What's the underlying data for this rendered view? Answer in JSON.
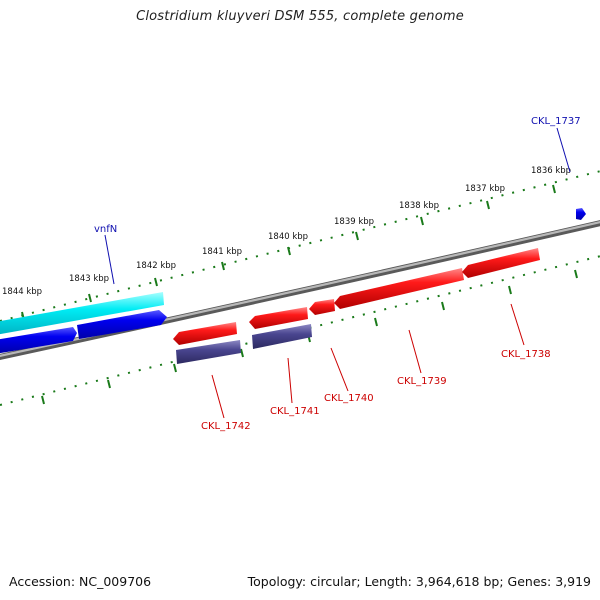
{
  "title": "Clostridium kluyveri DSM 555, complete genome",
  "footer": {
    "accession": "Accession: NC_009706",
    "topology": "Topology: circular; Length: 3,964,618 bp; Genes: 3,919"
  },
  "ruler_labels": [
    "1836 kbp",
    "1837 kbp",
    "1838 kbp",
    "1839 kbp",
    "1840 kbp",
    "1841 kbp",
    "1842 kbp",
    "1843 kbp",
    "1844 kbp"
  ],
  "gene_labels": {
    "vnfN": "vnfN",
    "CKL_1737": "CKL_1737",
    "CKL_1738": "CKL_1738",
    "CKL_1739": "CKL_1739",
    "CKL_1740": "CKL_1740",
    "CKL_1741": "CKL_1741",
    "CKL_1742": "CKL_1742"
  },
  "colors": {
    "forward_gene": "#0000ee",
    "forward_highlight": "#00e5ee",
    "reverse_gene": "#ee0000",
    "reverse_rna": "#4a4690",
    "backbone": "#8a8a8a",
    "ruler_ticks": "#1a7a1a",
    "forward_label": "#1010b0",
    "reverse_label": "#cc0000"
  }
}
